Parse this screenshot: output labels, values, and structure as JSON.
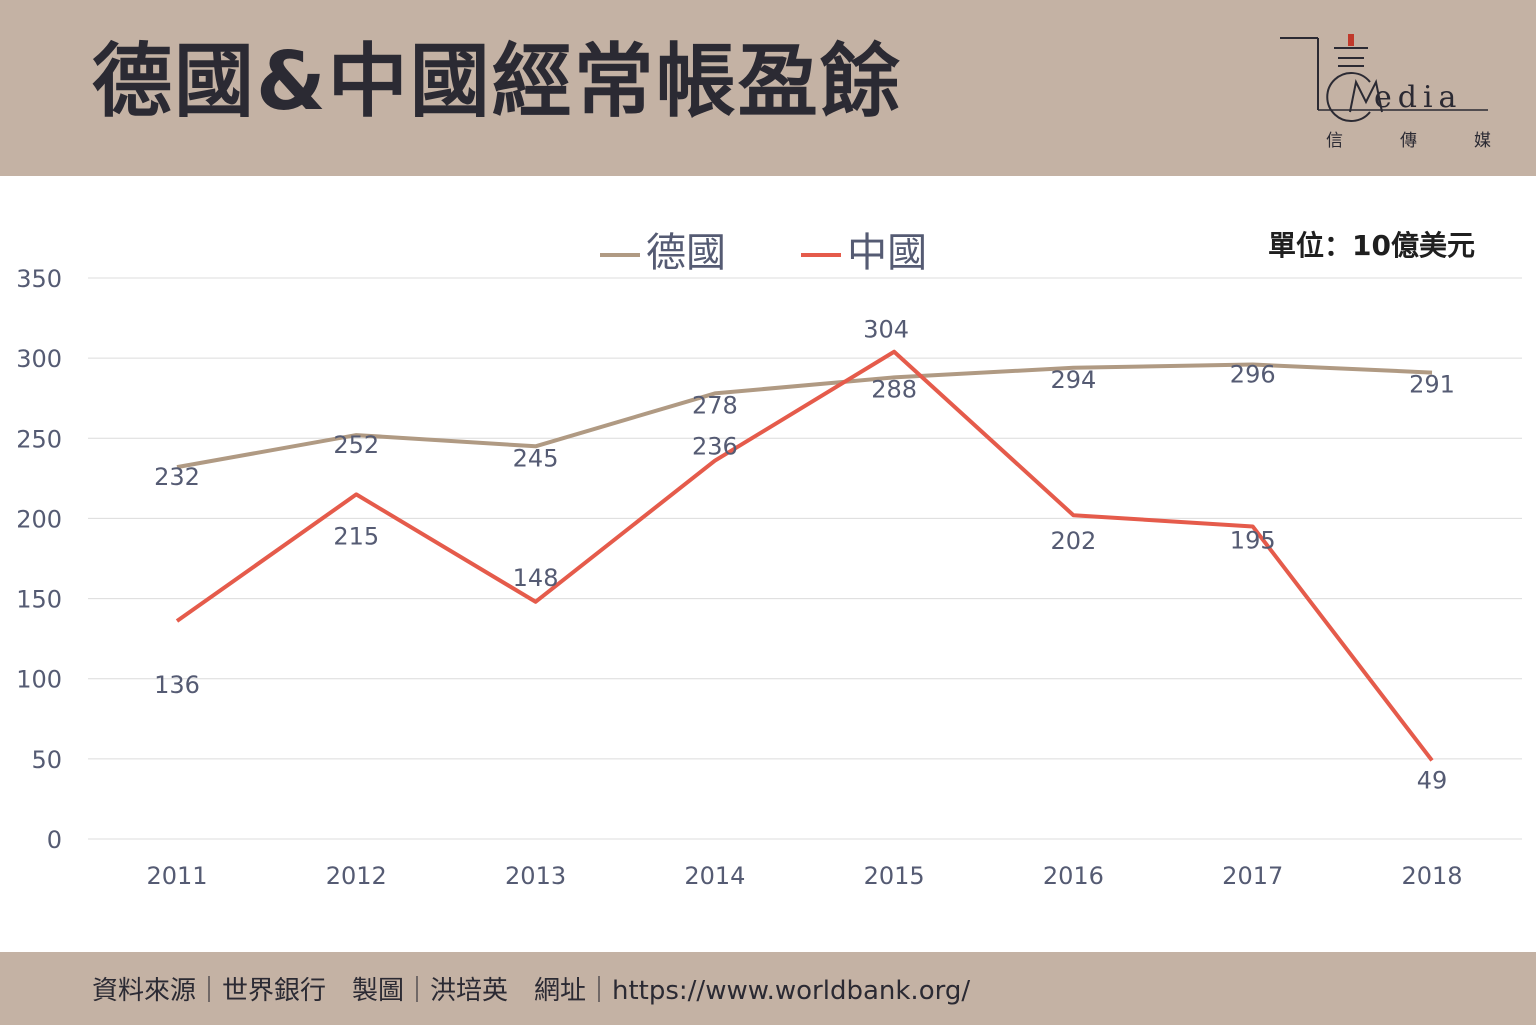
{
  "header": {
    "title": "德國&中國經常帳盈餘",
    "logo": {
      "wordmark": "edia",
      "sub": [
        "信",
        "傳",
        "媒"
      ]
    }
  },
  "unit_label": "單位：10億美元",
  "footer": {
    "text": "資料來源｜世界銀行　製圖｜洪培英　網址｜https://www.worldbank.org/"
  },
  "colors": {
    "germany": "#b09a83",
    "china": "#e55b4b",
    "band": "#c4b2a4"
  },
  "chart_data": {
    "type": "line",
    "title": "",
    "xlabel": "",
    "ylabel": "",
    "categories": [
      "2011",
      "2012",
      "2013",
      "2014",
      "2015",
      "2016",
      "2017",
      "2018"
    ],
    "series": [
      {
        "name": "德國",
        "color": "#b09a83",
        "values": [
          232,
          252,
          245,
          278,
          288,
          294,
          296,
          291
        ]
      },
      {
        "name": "中國",
        "color": "#e55b4b",
        "values": [
          136,
          215,
          148,
          236,
          304,
          202,
          195,
          49
        ]
      }
    ],
    "ylim": [
      0,
      350
    ],
    "yticks": [
      0,
      50,
      100,
      150,
      200,
      250,
      300,
      350
    ],
    "grid": true,
    "legend": "top-center"
  }
}
